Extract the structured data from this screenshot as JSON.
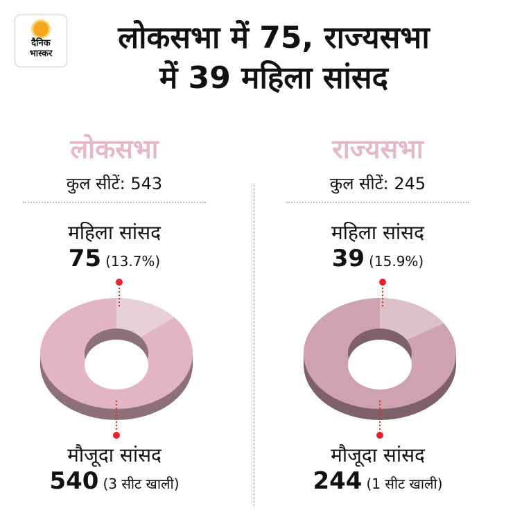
{
  "logo": {
    "line1": "दैनिक",
    "line2": "भास्कर"
  },
  "title": {
    "line1": "लोकसभा में 75, राज्यसभा",
    "line2": "में 39 महिला सांसद"
  },
  "chart_data": [
    {
      "type": "pie",
      "house": "लोकसभा",
      "total_label": "कुल सीटें: 543",
      "total_seats": 543,
      "women_label": "महिला सांसद",
      "women_value": "75",
      "women_pct": "(13.7%)",
      "women_share": 13.7,
      "current_label": "मौजूदा सांसद",
      "current_value": "540",
      "vacant": "(3 सीट खाली)",
      "colors": {
        "main": "#e2b4c4",
        "women": "#e8d0d8",
        "side": "#8e7078"
      }
    },
    {
      "type": "pie",
      "house": "राज्यसभा",
      "total_label": "कुल सीटें: 245",
      "total_seats": 245,
      "women_label": "महिला सांसद",
      "women_value": "39",
      "women_pct": "(15.9%)",
      "women_share": 15.9,
      "current_label": "मौजूदा सांसद",
      "current_value": "244",
      "vacant": "(1 सीट खाली)",
      "colors": {
        "main": "#cfa2b0",
        "women": "#dcc0c8",
        "side": "#7e6068"
      }
    }
  ],
  "accent": "#e8232a"
}
